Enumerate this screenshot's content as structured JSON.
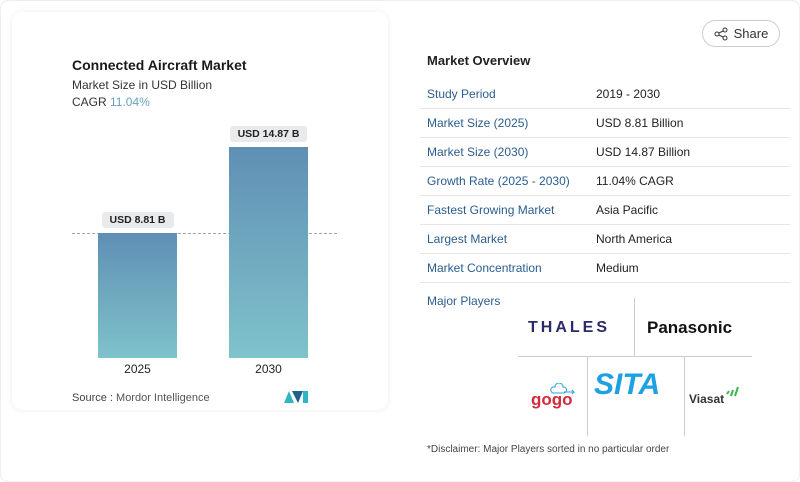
{
  "share": {
    "label": "Share",
    "icon": "share-icon"
  },
  "chart": {
    "title": "Connected Aircraft Market",
    "subtitle": "Market Size in USD Billion",
    "cagr_label": "CAGR",
    "cagr_value": "11.04%",
    "source_label": "Source :",
    "source_value": "Mordor Intelligence"
  },
  "chart_data": {
    "type": "bar",
    "categories": [
      "2025",
      "2030"
    ],
    "values": [
      8.81,
      14.87
    ],
    "data_labels": [
      "USD 8.81 B",
      "USD 14.87 B"
    ],
    "title": "Connected Aircraft Market",
    "ylabel": "Market Size in USD Billion",
    "colors": [
      "#5f8fb4",
      "#7fc3cb"
    ]
  },
  "overview": {
    "title": "Market Overview",
    "rows": [
      {
        "key": "Study Period",
        "value": "2019 - 2030"
      },
      {
        "key": "Market Size (2025)",
        "value": "USD 8.81 Billion"
      },
      {
        "key": "Market Size (2030)",
        "value": "USD 14.87 Billion"
      },
      {
        "key": "Growth Rate (2025 - 2030)",
        "value": "11.04% CAGR"
      },
      {
        "key": "Fastest Growing Market",
        "value": "Asia Pacific"
      },
      {
        "key": "Largest Market",
        "value": "North America"
      },
      {
        "key": "Market Concentration",
        "value": "Medium"
      }
    ],
    "major_players_label": "Major Players",
    "players": [
      "THALES",
      "Panasonic",
      "gogo",
      "SITA",
      "Viasat"
    ],
    "disclaimer": "*Disclaimer: Major Players sorted in no particular order"
  }
}
